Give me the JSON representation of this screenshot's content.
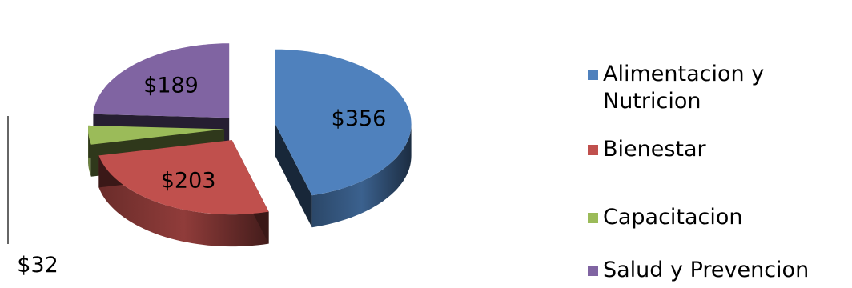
{
  "chart_data": {
    "type": "pie",
    "style": "exploded-3d",
    "categories": [
      "Alimentacion y Nutricion",
      "Bienestar",
      "Capacitacion",
      "Salud y Prevencion"
    ],
    "values": [
      356,
      203,
      32,
      189
    ],
    "data_labels": [
      "$356",
      "$203",
      "$32",
      "$189"
    ],
    "colors": [
      "#4F81BD",
      "#C0504D",
      "#9BBB59",
      "#8064A2"
    ],
    "legend_position": "right"
  }
}
